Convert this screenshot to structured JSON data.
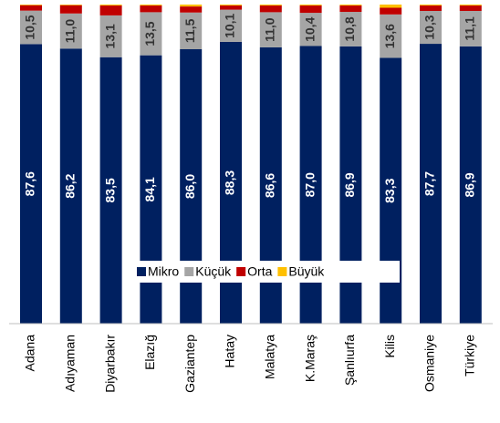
{
  "chart_data": {
    "type": "stacked_bar",
    "categories": [
      "Adana",
      "Adıyaman",
      "Diyarbakır",
      "Elazığ",
      "Gaziantep",
      "Hatay",
      "Malatya",
      "K.Maraş",
      "Şanlıurfa",
      "Kilis",
      "Osmaniye",
      "Türkiye"
    ],
    "series": [
      {
        "name": "Mikro",
        "color": "#002060",
        "values": [
          87.6,
          86.2,
          83.5,
          84.1,
          86.0,
          88.3,
          86.6,
          87.0,
          86.9,
          83.3,
          87.7,
          86.9
        ],
        "value_labels": [
          "87,6",
          "86,2",
          "83,5",
          "84,1",
          "86,0",
          "88,3",
          "86,6",
          "87,0",
          "86,9",
          "83,3",
          "87,7",
          "86,9"
        ]
      },
      {
        "name": "Küçük",
        "color": "#a5a5a5",
        "values": [
          10.5,
          11.0,
          13.1,
          13.5,
          11.5,
          10.1,
          11.0,
          10.4,
          10.8,
          13.6,
          10.3,
          11.1
        ],
        "value_labels": [
          "10,5",
          "11,0",
          "13,1",
          "13,5",
          "11,5",
          "10,1",
          "11,0",
          "10,4",
          "10,8",
          "13,6",
          "10,3",
          "11,1"
        ]
      },
      {
        "name": "Orta",
        "color": "#c00000",
        "values": [
          1.7,
          2.6,
          3.1,
          2.1,
          1.9,
          1.3,
          2.1,
          2.3,
          2.0,
          2.1,
          1.7,
          1.7
        ]
      },
      {
        "name": "Büyük",
        "color": "#ffc000",
        "values": [
          0.2,
          0.2,
          0.3,
          0.3,
          0.6,
          0.3,
          0.3,
          0.3,
          0.3,
          1.0,
          0.3,
          0.3
        ]
      }
    ],
    "ylim": [
      0,
      100
    ]
  }
}
